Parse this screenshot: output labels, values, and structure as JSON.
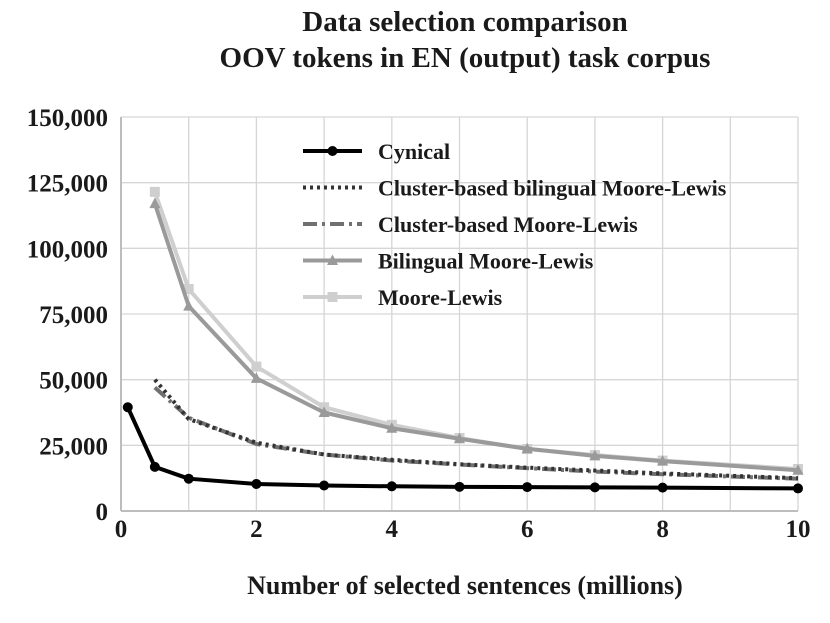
{
  "chart_data": {
    "type": "line",
    "title_lines": [
      "Data selection comparison",
      "OOV tokens in EN (output) task corpus"
    ],
    "xlabel": "Number of selected sentences (millions)",
    "ylabel": "",
    "xlim": [
      0,
      10
    ],
    "ylim": [
      0,
      150000
    ],
    "xticks": [
      0,
      2,
      4,
      6,
      8,
      10
    ],
    "xtick_labels": [
      "0",
      "2",
      "4",
      "6",
      "8",
      "10"
    ],
    "xgrid": [
      1,
      2,
      3,
      4,
      5,
      6,
      7,
      8,
      9,
      10
    ],
    "yticks": [
      0,
      25000,
      50000,
      75000,
      100000,
      125000,
      150000
    ],
    "ytick_labels": [
      "0",
      "25,000",
      "50,000",
      "75,000",
      "100,000",
      "125,000",
      "150,000"
    ],
    "grid": true,
    "legend_position": "top-right",
    "series": [
      {
        "name": "Cynical",
        "color": "#000000",
        "style": "solid",
        "marker": "circle",
        "x": [
          0.1,
          0.5,
          1,
          2,
          3,
          4,
          5,
          6,
          7,
          8,
          10
        ],
        "y": [
          39500,
          16800,
          12300,
          10300,
          9700,
          9400,
          9200,
          9100,
          9000,
          8900,
          8600
        ]
      },
      {
        "name": "Cluster-based bilingual Moore-Lewis",
        "color": "#333333",
        "style": "dotted",
        "marker": "none",
        "x": [
          0.5,
          1,
          2,
          3,
          4,
          5,
          6,
          7,
          8,
          10
        ],
        "y": [
          50000,
          35000,
          26000,
          21500,
          19500,
          17800,
          16500,
          15400,
          14300,
          12500
        ]
      },
      {
        "name": "Cluster-based Moore-Lewis",
        "color": "#707070",
        "style": "dashdot",
        "marker": "none",
        "x": [
          0.5,
          1,
          2,
          3,
          4,
          5,
          6,
          7,
          8,
          10
        ],
        "y": [
          47000,
          35500,
          25500,
          21500,
          19200,
          17700,
          16300,
          15000,
          14000,
          12300
        ]
      },
      {
        "name": "Bilingual Moore-Lewis",
        "color": "#9a9a9a",
        "style": "solid",
        "marker": "triangle",
        "x": [
          0.5,
          1,
          2,
          3,
          4,
          5,
          6,
          7,
          8,
          10
        ],
        "y": [
          117000,
          78000,
          50500,
          37500,
          31500,
          27500,
          23700,
          21000,
          19000,
          15500
        ]
      },
      {
        "name": "Moore-Lewis",
        "color": "#cfcfcf",
        "style": "solid",
        "marker": "square",
        "x": [
          0.5,
          1,
          2,
          3,
          4,
          5,
          6,
          7,
          8,
          10
        ],
        "y": [
          121500,
          84500,
          55000,
          39500,
          32800,
          27800,
          23600,
          21300,
          19200,
          16000
        ]
      }
    ]
  }
}
